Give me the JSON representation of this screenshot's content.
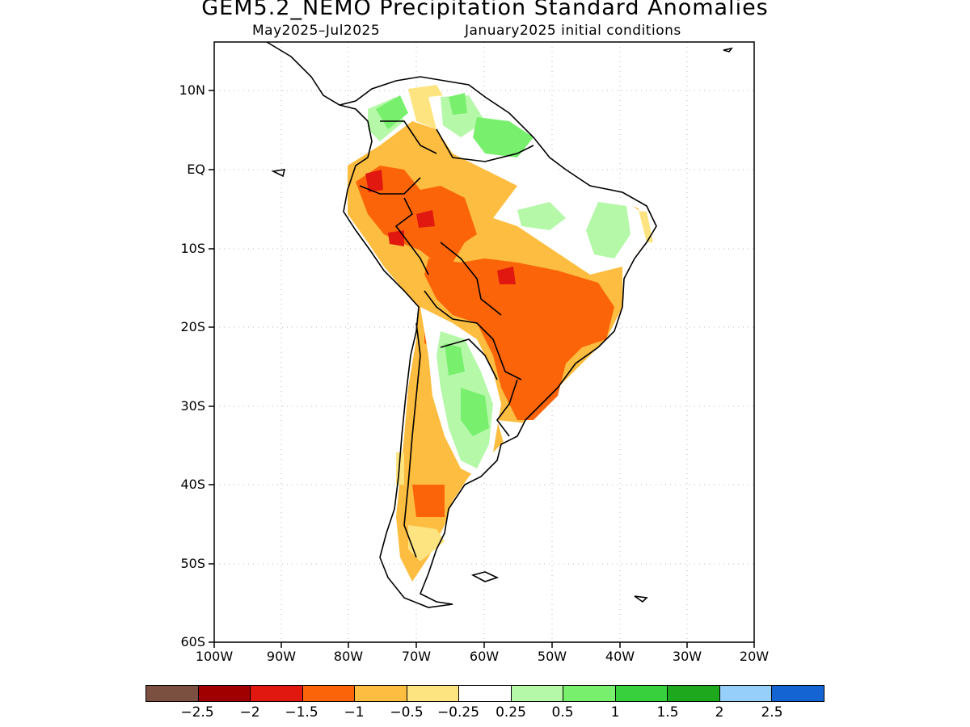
{
  "title": "GEM5.2_NEMO Precipitation Standard Anomalies",
  "subtitle_left": "May2025–Jul2025",
  "subtitle_right": "January2025 initial conditions",
  "lat_labels": [
    "10N",
    "EQ",
    "10S",
    "20S",
    "30S",
    "40S",
    "50S",
    "60S"
  ],
  "lon_labels": [
    "100W",
    "90W",
    "80W",
    "70W",
    "60W",
    "50W",
    "40W",
    "30W",
    "20W"
  ],
  "colorbar": {
    "colors": [
      "#7b5040",
      "#a00000",
      "#e01810",
      "#fb6408",
      "#fdbd40",
      "#fde480",
      "#ffffff",
      "#b4f8a8",
      "#78f06e",
      "#38d03c",
      "#1ea81e",
      "#96d0fa",
      "#1464d4"
    ],
    "labels": [
      "−2.5",
      "−2",
      "−1.5",
      "−1",
      "−0.5",
      "−0.25",
      "0.25",
      "0.5",
      "1",
      "1.5",
      "2",
      "2.5"
    ]
  },
  "map_extent": {
    "lon": [
      -100,
      -20
    ],
    "lat": [
      -60,
      15
    ]
  }
}
